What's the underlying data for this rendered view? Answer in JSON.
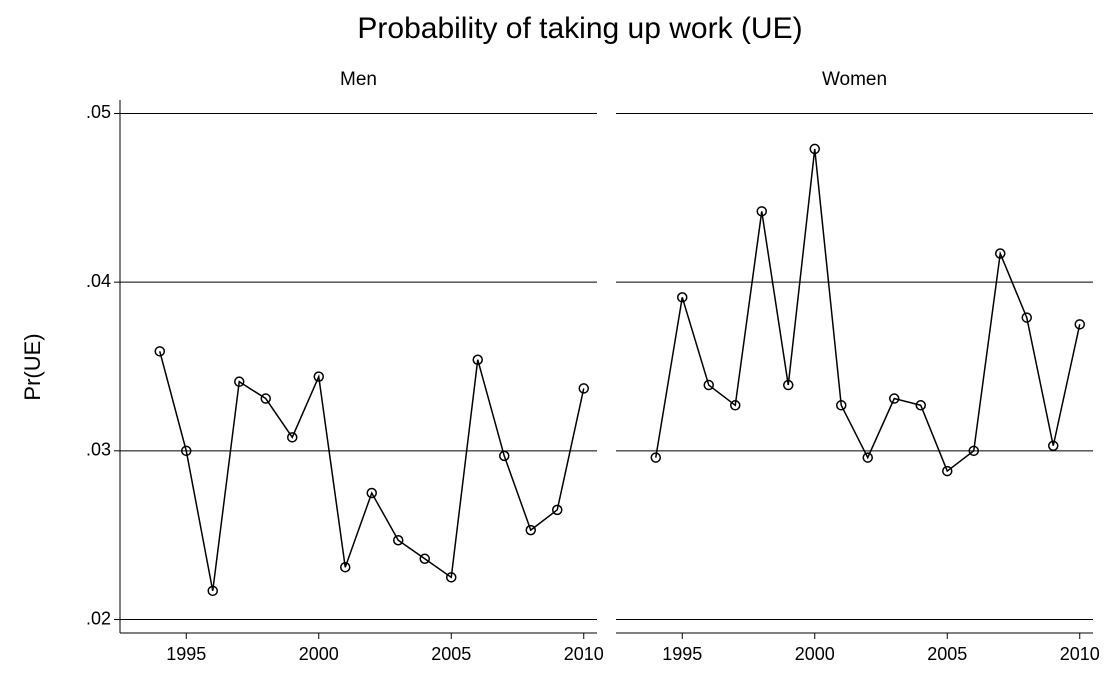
{
  "title": "Probability of taking up work (UE)",
  "y_label": "Pr(UE)",
  "chart_data": [
    {
      "type": "line",
      "title": "Men",
      "color": "#000000",
      "x": [
        1994,
        1995,
        1996,
        1997,
        1998,
        1999,
        2000,
        2001,
        2002,
        2003,
        2004,
        2005,
        2006,
        2007,
        2008,
        2009,
        2010
      ],
      "values": [
        0.0359,
        0.03,
        0.0217,
        0.0341,
        0.0331,
        0.0308,
        0.0344,
        0.0231,
        0.0275,
        0.0247,
        0.0236,
        0.0225,
        0.0354,
        0.0297,
        0.0253,
        0.0265,
        0.0337
      ],
      "xlim": [
        1992.5,
        2010.5
      ],
      "xticks": [
        1995,
        2000,
        2005,
        2010
      ],
      "ylim": [
        0.0192,
        0.0508
      ],
      "yticks": [
        {
          "value": 0.02,
          "label": ".02"
        },
        {
          "value": 0.03,
          "label": ".03"
        },
        {
          "value": 0.04,
          "label": ".04"
        },
        {
          "value": 0.05,
          "label": ".05"
        }
      ],
      "grid": true
    },
    {
      "type": "line",
      "title": "Women",
      "color": "#000000",
      "x": [
        1994,
        1995,
        1996,
        1997,
        1998,
        1999,
        2000,
        2001,
        2002,
        2003,
        2004,
        2005,
        2006,
        2007,
        2008,
        2009,
        2010
      ],
      "values": [
        0.0296,
        0.0391,
        0.0339,
        0.0327,
        0.0442,
        0.0339,
        0.0479,
        0.0327,
        0.0296,
        0.0331,
        0.0327,
        0.0288,
        0.03,
        0.0417,
        0.0379,
        0.0303,
        0.0375
      ],
      "xlim": [
        1992.5,
        2010.5
      ],
      "xticks": [
        1995,
        2000,
        2005,
        2010
      ],
      "ylim": [
        0.0192,
        0.0508
      ],
      "yticks": [
        {
          "value": 0.02,
          "label": ".02"
        },
        {
          "value": 0.03,
          "label": ".03"
        },
        {
          "value": 0.04,
          "label": ".04"
        },
        {
          "value": 0.05,
          "label": ".05"
        }
      ],
      "grid": true
    }
  ]
}
